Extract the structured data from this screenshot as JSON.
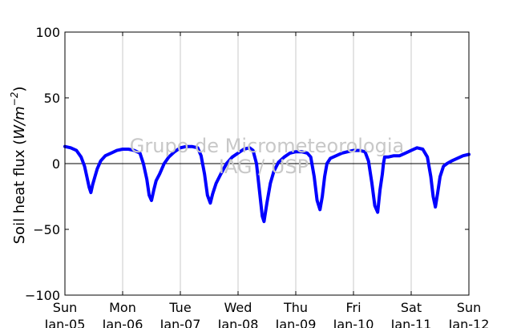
{
  "chart_data": {
    "type": "line",
    "ylabel_text": "Soil heat flux (",
    "ylabel_math": "W/m",
    "ylabel_exp": "−2",
    "ylabel_close": ")",
    "ylim": [
      -100,
      100
    ],
    "yticks": [
      100,
      50,
      0,
      -50,
      -100
    ],
    "ytick_labels": [
      "100",
      "50",
      "0",
      "−50",
      "−100"
    ],
    "xlim": [
      0,
      7
    ],
    "x_ticks": [
      {
        "day": "Sun",
        "date": "Jan-05"
      },
      {
        "day": "Mon",
        "date": "Jan-06"
      },
      {
        "day": "Tue",
        "date": "Jan-07"
      },
      {
        "day": "Wed",
        "date": "Jan-08"
      },
      {
        "day": "Thu",
        "date": "Jan-09"
      },
      {
        "day": "Fri",
        "date": "Jan-10"
      },
      {
        "day": "Sat",
        "date": "Jan-11"
      },
      {
        "day": "Sun",
        "date": "Jan-12"
      }
    ],
    "grid": "vertical",
    "zero_line": true,
    "line_color": "#0000ff",
    "watermark": [
      "Grupo de Micrometeorologia",
      "IAG / USP"
    ],
    "series": [
      {
        "x": [
          0.0,
          0.1,
          0.2,
          0.28,
          0.34,
          0.38,
          0.42,
          0.45,
          0.48,
          0.52,
          0.56,
          0.62,
          0.7,
          0.8,
          0.9,
          1.0,
          1.1,
          1.2,
          1.3,
          1.36,
          1.42,
          1.46,
          1.5,
          1.54,
          1.58,
          1.64,
          1.72,
          1.8,
          1.9,
          2.0,
          2.1,
          2.2,
          2.3,
          2.36,
          2.42,
          2.47,
          2.52,
          2.56,
          2.62,
          2.7,
          2.8,
          2.9,
          3.0,
          3.1,
          3.2,
          3.26,
          3.32,
          3.37,
          3.42,
          3.45,
          3.5,
          3.56,
          3.62,
          3.7,
          3.8,
          3.9,
          4.0,
          4.1,
          4.2,
          4.26,
          4.32,
          4.37,
          4.42,
          4.46,
          4.5,
          4.54,
          4.6,
          4.7,
          4.8,
          4.9,
          5.0,
          5.1,
          5.2,
          5.26,
          5.32,
          5.37,
          5.42,
          5.46,
          5.5,
          5.52,
          5.54,
          5.6,
          5.7,
          5.8,
          5.9,
          6.0,
          6.1,
          6.2,
          6.28,
          6.34,
          6.38,
          6.42,
          6.46,
          6.5,
          6.56,
          6.62,
          6.7,
          6.8,
          6.9,
          7.0
        ],
        "y": [
          13,
          12,
          10,
          5,
          -2,
          -10,
          -18,
          -22,
          -16,
          -10,
          -4,
          2,
          6,
          8,
          10,
          11,
          11,
          10,
          8,
          0,
          -12,
          -24,
          -28,
          -20,
          -13,
          -8,
          0,
          5,
          9,
          12,
          13,
          13,
          12,
          6,
          -8,
          -24,
          -30,
          -23,
          -15,
          -8,
          0,
          5,
          8,
          11,
          12,
          10,
          0,
          -20,
          -40,
          -44,
          -30,
          -15,
          -6,
          1,
          5,
          8,
          9,
          9,
          8,
          5,
          -10,
          -28,
          -35,
          -25,
          -10,
          0,
          4,
          6,
          8,
          9,
          10,
          10,
          9,
          2,
          -15,
          -32,
          -37,
          -20,
          -8,
          0,
          5,
          5,
          6,
          6,
          8,
          10,
          12,
          11,
          5,
          -10,
          -25,
          -33,
          -22,
          -10,
          -2,
          0,
          2,
          4,
          6,
          7
        ]
      }
    ]
  }
}
